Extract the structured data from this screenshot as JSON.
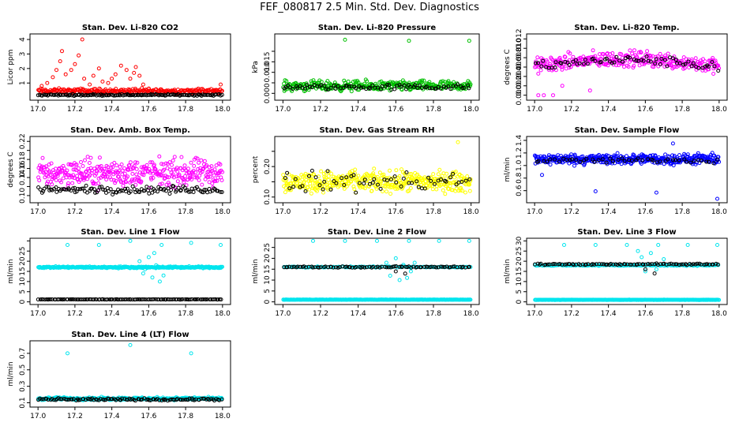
{
  "page_title": "FEF_080817  2.5 Min. Std. Dev. Diagnostics",
  "chart_data": [
    {
      "id": "co2",
      "type": "scatter",
      "title": "Stan. Dev. Li-820 CO2",
      "ylabel": "Licor ppm",
      "xlim": [
        17.0,
        18.0
      ],
      "ylim": [
        0.0,
        4.2
      ],
      "xticks": [
        17.0,
        17.2,
        17.4,
        17.6,
        17.8,
        18.0
      ],
      "xtick_labels": [
        "17.0",
        "17.2",
        "17.4",
        "17.6",
        "17.8",
        "18.0"
      ],
      "yticks": [
        1,
        2,
        3,
        4
      ],
      "ytick_labels": [
        "1",
        "2",
        "3",
        "4"
      ],
      "series": [
        {
          "name": "red",
          "color": "#ff0000",
          "base": 0.45,
          "spread": 0.25,
          "count": 260,
          "outliers": [
            [
              17.02,
              0.8
            ],
            [
              17.05,
              1.0
            ],
            [
              17.08,
              1.4
            ],
            [
              17.1,
              1.9
            ],
            [
              17.12,
              2.5
            ],
            [
              17.13,
              3.2
            ],
            [
              17.15,
              1.6
            ],
            [
              17.18,
              1.9
            ],
            [
              17.2,
              2.3
            ],
            [
              17.22,
              2.9
            ],
            [
              17.24,
              4.0
            ],
            [
              17.25,
              1.3
            ],
            [
              17.28,
              0.9
            ],
            [
              17.3,
              1.5
            ],
            [
              17.33,
              2.0
            ],
            [
              17.35,
              1.1
            ],
            [
              17.38,
              1.0
            ],
            [
              17.4,
              1.3
            ],
            [
              17.42,
              1.6
            ],
            [
              17.45,
              2.2
            ],
            [
              17.48,
              1.9
            ],
            [
              17.5,
              1.3
            ],
            [
              17.52,
              1.7
            ],
            [
              17.53,
              2.1
            ],
            [
              17.55,
              1.5
            ],
            [
              17.57,
              0.9
            ],
            [
              17.6,
              0.6
            ],
            [
              17.99,
              0.9
            ]
          ]
        },
        {
          "name": "black",
          "color": "#000000",
          "base": 0.18,
          "spread": 0.08,
          "count": 140,
          "outliers": []
        }
      ]
    },
    {
      "id": "pressure",
      "type": "scatter",
      "title": "Stan. Dev. Li-820 Pressure",
      "ylabel": "kPa",
      "xlim": [
        17.0,
        18.0
      ],
      "ylim": [
        -0.002,
        0.027
      ],
      "xticks": [
        17.0,
        17.2,
        17.4,
        17.6,
        17.8,
        18.0
      ],
      "xtick_labels": [
        "17.0",
        "17.2",
        "17.4",
        "17.6",
        "17.8",
        "18.0"
      ],
      "yticks": [
        0.0,
        0.005,
        0.01,
        0.015,
        0.02
      ],
      "ytick_labels": [
        "0.000",
        "",
        "0.010",
        "0.015",
        ""
      ],
      "series": [
        {
          "name": "green",
          "color": "#00c000",
          "base": 0.0035,
          "spread": 0.0035,
          "count": 330,
          "outliers": [
            [
              17.33,
              0.0255
            ],
            [
              17.67,
              0.025
            ],
            [
              17.99,
              0.025
            ]
          ]
        },
        {
          "name": "black",
          "color": "#000000",
          "base": 0.003,
          "spread": 0.002,
          "count": 80,
          "outliers": []
        }
      ]
    },
    {
      "id": "temp",
      "type": "scatter",
      "title": "Stan. Dev. Li-820 Temp.",
      "ylabel": "degrees C",
      "xlim": [
        17.0,
        18.0
      ],
      "ylim": [
        -0.0005,
        0.0125
      ],
      "xticks": [
        17.0,
        17.2,
        17.4,
        17.6,
        17.8,
        18.0
      ],
      "xtick_labels": [
        "17.0",
        "17.2",
        "17.4",
        "17.6",
        "17.8",
        "18.0"
      ],
      "yticks": [
        0.0,
        0.002,
        0.004,
        0.006,
        0.008,
        0.01,
        0.012
      ],
      "ytick_labels": [
        "0.000",
        "0.002",
        "0.004",
        "0.006",
        "0.008",
        "0.010",
        "0.012"
      ],
      "series": [
        {
          "name": "magenta",
          "color": "#ff00ff",
          "base": 0.0062,
          "spread": 0.0025,
          "count": 330,
          "trend": 0.0015,
          "outliers": [
            [
              17.02,
              0.0
            ],
            [
              17.05,
              0.0
            ],
            [
              17.1,
              0.0
            ],
            [
              17.15,
              0.002
            ],
            [
              17.3,
              0.001
            ]
          ]
        },
        {
          "name": "black",
          "color": "#000000",
          "base": 0.006,
          "spread": 0.0015,
          "count": 70,
          "trend": 0.0015,
          "outliers": []
        }
      ]
    },
    {
      "id": "ambbox",
      "type": "scatter",
      "title": "Stan. Dev. Amb. Box Temp.",
      "ylabel": "degrees C",
      "xlim": [
        17.0,
        18.0
      ],
      "ylim": [
        0.09,
        0.225
      ],
      "xticks": [
        17.0,
        17.2,
        17.4,
        17.6,
        17.8,
        18.0
      ],
      "xtick_labels": [
        "17.0",
        "17.2",
        "17.4",
        "17.6",
        "17.8",
        "18.0"
      ],
      "yticks": [
        0.1,
        0.12,
        0.14,
        0.16,
        0.18,
        0.2,
        0.22
      ],
      "ytick_labels": [
        "0.10",
        "",
        "0.14",
        "0.16",
        "0.18",
        "",
        "0.22"
      ],
      "series": [
        {
          "name": "magenta",
          "color": "#ff00ff",
          "base": 0.15,
          "spread": 0.045,
          "count": 380,
          "outliers": []
        },
        {
          "name": "black",
          "color": "#000000",
          "base": 0.113,
          "spread": 0.012,
          "count": 120,
          "outliers": []
        }
      ]
    },
    {
      "id": "rh",
      "type": "scatter",
      "title": "Stan. Dev. Gas Stream RH",
      "ylabel": "percent",
      "xlim": [
        17.0,
        18.0
      ],
      "ylim": [
        0.09,
        0.29
      ],
      "xticks": [
        17.0,
        17.2,
        17.4,
        17.6,
        17.8,
        18.0
      ],
      "xtick_labels": [
        "17.0",
        "17.2",
        "17.4",
        "17.6",
        "17.8",
        "18.0"
      ],
      "yticks": [
        0.1,
        0.15,
        0.2,
        0.25
      ],
      "ytick_labels": [
        "0.10",
        "",
        "0.20",
        ""
      ],
      "series": [
        {
          "name": "yellow",
          "color": "#ffff00",
          "base": 0.15,
          "spread": 0.05,
          "count": 420,
          "outliers": [
            [
              17.93,
              0.28
            ]
          ]
        },
        {
          "name": "black",
          "color": "#000000",
          "base": 0.15,
          "spread": 0.05,
          "count": 60,
          "outliers": []
        }
      ]
    },
    {
      "id": "sampleflow",
      "type": "scatter",
      "title": "Stan. Dev. Sample Flow",
      "ylabel": "ml/min",
      "xlim": [
        17.0,
        18.0
      ],
      "ylim": [
        0.45,
        1.42
      ],
      "xticks": [
        17.0,
        17.2,
        17.4,
        17.6,
        17.8,
        18.0
      ],
      "xtick_labels": [
        "17.0",
        "17.2",
        "17.4",
        "17.6",
        "17.8",
        "18.0"
      ],
      "yticks": [
        0.6,
        0.8,
        1.0,
        1.2,
        1.4
      ],
      "ytick_labels": [
        "0.6",
        "0.8",
        "1.0",
        "1.2",
        "1.4"
      ],
      "series": [
        {
          "name": "blue",
          "color": "#0000ff",
          "base": 1.1,
          "spread": 0.12,
          "count": 420,
          "outliers": [
            [
              17.33,
              0.59
            ],
            [
              17.66,
              0.57
            ],
            [
              17.99,
              0.47
            ],
            [
              17.04,
              0.85
            ],
            [
              17.75,
              1.35
            ]
          ]
        },
        {
          "name": "black",
          "color": "#000000",
          "base": 1.08,
          "spread": 0.06,
          "count": 50,
          "outliers": []
        }
      ]
    },
    {
      "id": "line1",
      "type": "scatter",
      "title": "Stan. Dev. Line 1 Flow",
      "ylabel": "ml/min",
      "xlim": [
        17.0,
        18.0
      ],
      "ylim": [
        0,
        30
      ],
      "xticks": [
        17.0,
        17.2,
        17.4,
        17.6,
        17.8,
        18.0
      ],
      "xtick_labels": [
        "17.0",
        "17.2",
        "17.4",
        "17.6",
        "17.8",
        "18.0"
      ],
      "yticks": [
        0,
        5,
        10,
        15,
        20,
        25,
        30
      ],
      "ytick_labels": [
        "0",
        "5",
        "10",
        "15",
        "20",
        "25",
        ""
      ],
      "series": [
        {
          "name": "cyan",
          "color": "#00e5ee",
          "base": 17,
          "spread": 0.6,
          "count": 320,
          "outliers": [
            [
              17.16,
              28
            ],
            [
              17.33,
              28
            ],
            [
              17.5,
              30
            ],
            [
              17.67,
              28
            ],
            [
              17.83,
              29
            ],
            [
              17.99,
              28
            ],
            [
              17.55,
              20
            ],
            [
              17.57,
              14
            ],
            [
              17.6,
              22
            ],
            [
              17.62,
              12
            ],
            [
              17.64,
              18
            ],
            [
              17.66,
              10
            ],
            [
              17.68,
              13
            ],
            [
              17.58,
              16
            ],
            [
              17.63,
              24
            ]
          ]
        },
        {
          "name": "black",
          "color": "#000000",
          "base": 1.2,
          "spread": 0.1,
          "count": 120,
          "outliers": []
        }
      ]
    },
    {
      "id": "line2",
      "type": "scatter",
      "title": "Stan. Dev. Line 2 Flow",
      "ylabel": "ml/min",
      "xlim": [
        17.0,
        18.0
      ],
      "ylim": [
        0,
        28
      ],
      "xticks": [
        17.0,
        17.2,
        17.4,
        17.6,
        17.8,
        18.0
      ],
      "xtick_labels": [
        "17.0",
        "17.2",
        "17.4",
        "17.6",
        "17.8",
        "18.0"
      ],
      "yticks": [
        0,
        5,
        10,
        15,
        20,
        25
      ],
      "ytick_labels": [
        "0",
        "5",
        "10",
        "15",
        "20",
        "25"
      ],
      "series": [
        {
          "name": "cyan-base",
          "color": "#00e5ee",
          "base": 1.0,
          "spread": 0.1,
          "count": 320,
          "outliers": []
        },
        {
          "name": "cyan",
          "color": "#00e5ee",
          "base": 16,
          "spread": 0.4,
          "count": 120,
          "outliers": [
            [
              17.16,
              28
            ],
            [
              17.33,
              28
            ],
            [
              17.5,
              28
            ],
            [
              17.67,
              28
            ],
            [
              17.83,
              28
            ],
            [
              17.99,
              28
            ],
            [
              17.55,
              18
            ],
            [
              17.57,
              12
            ],
            [
              17.6,
              20
            ],
            [
              17.62,
              10
            ],
            [
              17.64,
              17
            ],
            [
              17.66,
              11
            ],
            [
              17.68,
              14
            ],
            [
              17.7,
              18
            ]
          ]
        },
        {
          "name": "black",
          "color": "#000000",
          "base": 16,
          "spread": 0.5,
          "count": 90,
          "outliers": [
            [
              17.6,
              14
            ],
            [
              17.65,
              13
            ]
          ]
        }
      ]
    },
    {
      "id": "line3",
      "type": "scatter",
      "title": "Stan. Dev. Line 3 Flow",
      "ylabel": "ml/min",
      "xlim": [
        17.0,
        18.0
      ],
      "ylim": [
        0,
        30
      ],
      "xticks": [
        17.0,
        17.2,
        17.4,
        17.6,
        17.8,
        18.0
      ],
      "xtick_labels": [
        "17.0",
        "17.2",
        "17.4",
        "17.6",
        "17.8",
        "18.0"
      ],
      "yticks": [
        0,
        5,
        10,
        15,
        20,
        25,
        30
      ],
      "ytick_labels": [
        "0",
        "5",
        "10",
        "15",
        "20",
        "25",
        "30"
      ],
      "series": [
        {
          "name": "cyan-base",
          "color": "#00e5ee",
          "base": 1.0,
          "spread": 0.1,
          "count": 320,
          "outliers": []
        },
        {
          "name": "cyan",
          "color": "#00e5ee",
          "base": 18,
          "spread": 0.4,
          "count": 140,
          "outliers": [
            [
              17.16,
              28
            ],
            [
              17.33,
              28
            ],
            [
              17.5,
              28
            ],
            [
              17.67,
              28
            ],
            [
              17.83,
              28
            ],
            [
              17.99,
              28
            ],
            [
              17.56,
              25
            ],
            [
              17.58,
              22
            ],
            [
              17.6,
              15
            ],
            [
              17.63,
              24
            ],
            [
              17.66,
              16
            ],
            [
              17.7,
              21
            ]
          ]
        },
        {
          "name": "black",
          "color": "#000000",
          "base": 18.5,
          "spread": 0.5,
          "count": 90,
          "outliers": [
            [
              17.6,
              16
            ],
            [
              17.65,
              14
            ]
          ]
        }
      ]
    },
    {
      "id": "line4",
      "type": "scatter",
      "title": "Stan. Dev. Line 4 (LT) Flow",
      "ylabel": "ml/min",
      "xlim": [
        17.0,
        18.0
      ],
      "ylim": [
        0.08,
        0.82
      ],
      "xticks": [
        17.0,
        17.2,
        17.4,
        17.6,
        17.8,
        18.0
      ],
      "xtick_labels": [
        "17.0",
        "17.2",
        "17.4",
        "17.6",
        "17.8",
        "18.0"
      ],
      "yticks": [
        0.1,
        0.3,
        0.5,
        0.7
      ],
      "ytick_labels": [
        "0.1",
        "0.3",
        "0.5",
        "0.7"
      ],
      "series": [
        {
          "name": "cyan",
          "color": "#00e5ee",
          "base": 0.15,
          "spread": 0.025,
          "count": 320,
          "outliers": [
            [
              17.16,
              0.7
            ],
            [
              17.5,
              0.8
            ],
            [
              17.83,
              0.7
            ]
          ]
        },
        {
          "name": "black",
          "color": "#000000",
          "base": 0.14,
          "spread": 0.02,
          "count": 110,
          "outliers": []
        }
      ]
    }
  ]
}
